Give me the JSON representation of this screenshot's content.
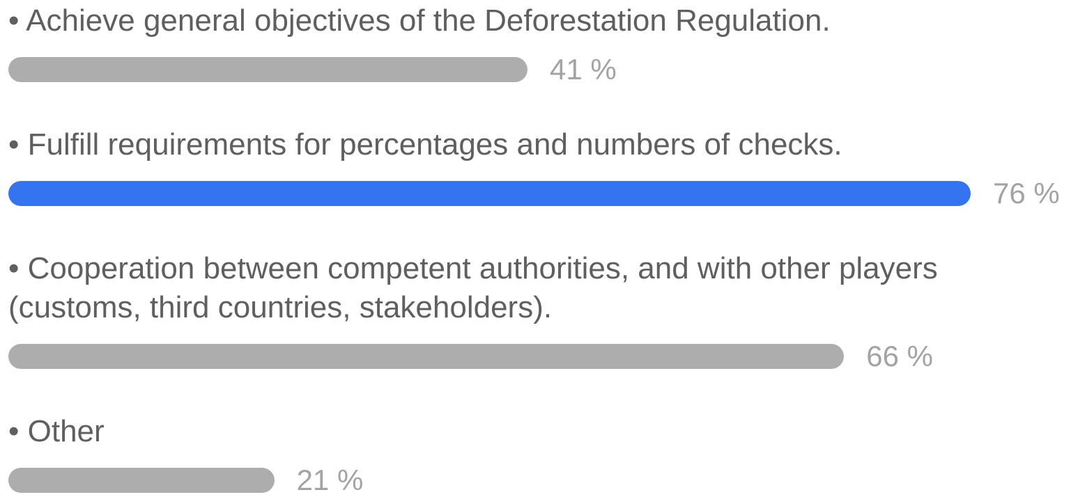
{
  "chart_data": {
    "type": "bar",
    "orientation": "horizontal",
    "categories": [
      "• Achieve general objectives of the Deforestation Regulation.",
      "• Fulfill requirements for percentages and numbers of checks.",
      "• Cooperation between competent authorities, and with other players (customs, third countries, stakeholders).",
      "• Other"
    ],
    "values": [
      41,
      76,
      66,
      21
    ],
    "value_labels": [
      "41 %",
      "76 %",
      "66 %",
      "21 %"
    ],
    "colors": [
      "#adadad",
      "#3574f0",
      "#adadad",
      "#adadad"
    ]
  }
}
